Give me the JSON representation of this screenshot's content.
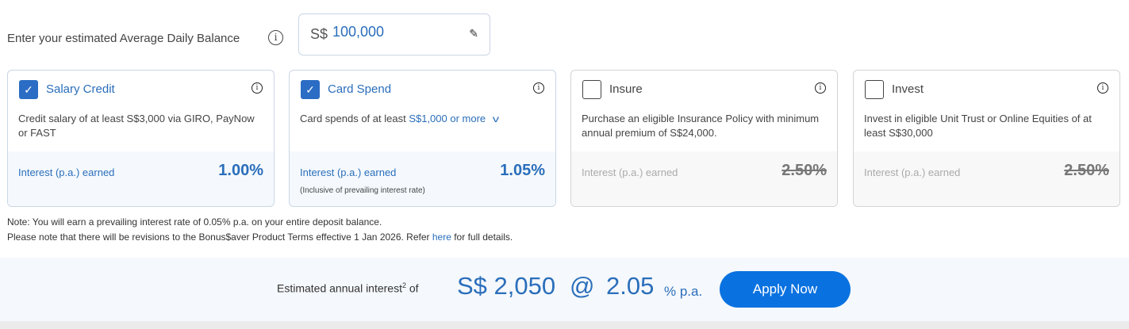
{
  "balance": {
    "label": "Enter your estimated Average Daily Balance",
    "currency": "S$",
    "value": "100,000",
    "info_icon": "info-icon",
    "edit_icon": "pencil-icon"
  },
  "cards": [
    {
      "title": "Salary Credit",
      "checked": true,
      "desc": "Credit salary of at least S$3,000 via GIRO, PayNow or FAST",
      "earn_label": "Interest (p.a.) earned",
      "rate": "1.00%"
    },
    {
      "title": "Card Spend",
      "checked": true,
      "desc_prefix": "Card spends of at least ",
      "desc_link": "S$1,000 or more",
      "earn_label": "Interest (p.a.) earned",
      "rate": "1.05%",
      "earn_sub": "(Inclusive of prevailing interest rate)"
    },
    {
      "title": "Insure",
      "checked": false,
      "desc": "Purchase an eligible Insurance Policy with minimum annual premium of S$24,000.",
      "earn_label": "Interest (p.a.) earned",
      "rate": "2.50%"
    },
    {
      "title": "Invest",
      "checked": false,
      "desc": "Invest in eligible Unit Trust or Online Equities of at least S$30,000",
      "earn_label": "Interest (p.a.) earned",
      "rate": "2.50%"
    }
  ],
  "note": {
    "line1": "Note: You will earn a prevailing interest rate of 0.05% p.a. on your entire deposit balance.",
    "line2_prefix": "Please note that there will be revisions to the Bonus$aver Product Terms effective 1 Jan 2026. Refer ",
    "line2_link": "here",
    "line2_suffix": " for full details."
  },
  "summary": {
    "label": "Estimated annual interest",
    "sup": "2",
    "of": " of",
    "amount": "S$ 2,050",
    "at": "@",
    "rate": "2.05",
    "unit": "% p.a.",
    "apply_label": "Apply Now"
  },
  "colors": {
    "accent": "#2a6ebb",
    "button": "#0a72e0",
    "checkbox": "#2b6cc4"
  }
}
